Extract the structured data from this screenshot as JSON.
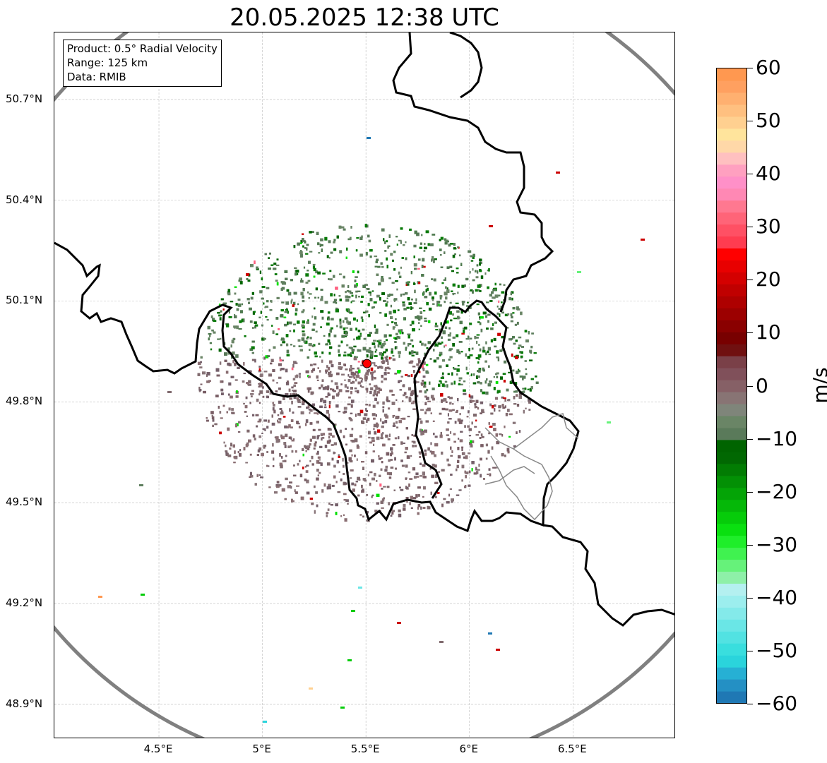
{
  "title": "20.05.2025 12:38 UTC",
  "info_box": {
    "product": "Product: 0.5° Radial Velocity",
    "range": "Range: 125 km",
    "data": "Data: RMIB"
  },
  "map": {
    "lon_range": [
      4.0,
      7.0
    ],
    "lat_range": [
      48.8,
      50.9
    ],
    "gridlines": true,
    "radar_site": {
      "lon": 5.505,
      "lat": 49.914,
      "color": "#ff0000"
    },
    "range_ring_color": "#808080",
    "border_color": "#000000",
    "lat_ticks": [
      {
        "value": 50.7,
        "label": "50.7°N"
      },
      {
        "value": 50.4,
        "label": "50.4°N"
      },
      {
        "value": 50.1,
        "label": "50.1°N"
      },
      {
        "value": 49.8,
        "label": "49.8°N"
      },
      {
        "value": 49.5,
        "label": "49.5°N"
      },
      {
        "value": 49.2,
        "label": "49.2°N"
      },
      {
        "value": 48.9,
        "label": "48.9°N"
      }
    ],
    "lon_ticks": [
      {
        "value": 4.5,
        "label": "4.5°E"
      },
      {
        "value": 5.0,
        "label": "5°E"
      },
      {
        "value": 5.5,
        "label": "5.5°E"
      },
      {
        "value": 6.0,
        "label": "6°E"
      },
      {
        "value": 6.5,
        "label": "6.5°E"
      }
    ]
  },
  "colorbar": {
    "unit": "m/s",
    "range": [
      -60,
      60
    ],
    "ticks": [
      {
        "value": 60,
        "label": "60"
      },
      {
        "value": 50,
        "label": "50"
      },
      {
        "value": 40,
        "label": "40"
      },
      {
        "value": 30,
        "label": "30"
      },
      {
        "value": 20,
        "label": "20"
      },
      {
        "value": 10,
        "label": "10"
      },
      {
        "value": 0,
        "label": "0"
      },
      {
        "value": -10,
        "label": "−10"
      },
      {
        "value": -20,
        "label": "−20"
      },
      {
        "value": -30,
        "label": "−30"
      },
      {
        "value": -40,
        "label": "−40"
      },
      {
        "value": -50,
        "label": "−50"
      },
      {
        "value": -60,
        "label": "−60"
      }
    ],
    "colors": [
      "#1f78b4",
      "#2490c4",
      "#26b0d4",
      "#2ad4dc",
      "#39dede",
      "#52e2e2",
      "#6ae6e6",
      "#84eaea",
      "#9ceeee",
      "#b4f0f0",
      "#8ef0a8",
      "#66f27a",
      "#40f250",
      "#1fee2a",
      "#0ae010",
      "#06cc0a",
      "#05b808",
      "#04a406",
      "#039005",
      "#027c03",
      "#016802",
      "#006400",
      "#5a7a5a",
      "#6a8566",
      "#7f857a",
      "#887474",
      "#866066",
      "#80505a",
      "#7a4048",
      "#701010",
      "#780000",
      "#8a0000",
      "#9c0000",
      "#ae0000",
      "#c00000",
      "#d40000",
      "#e80000",
      "#ff0000",
      "#ff3c50",
      "#ff5064",
      "#ff6478",
      "#ff7890",
      "#ff88b4",
      "#ff90c8",
      "#ffa0c0",
      "#ffc0c0",
      "#ffd8a8",
      "#ffe49c",
      "#ffd090",
      "#ffc080",
      "#ffb070",
      "#ffa060",
      "#ff9850"
    ]
  }
}
